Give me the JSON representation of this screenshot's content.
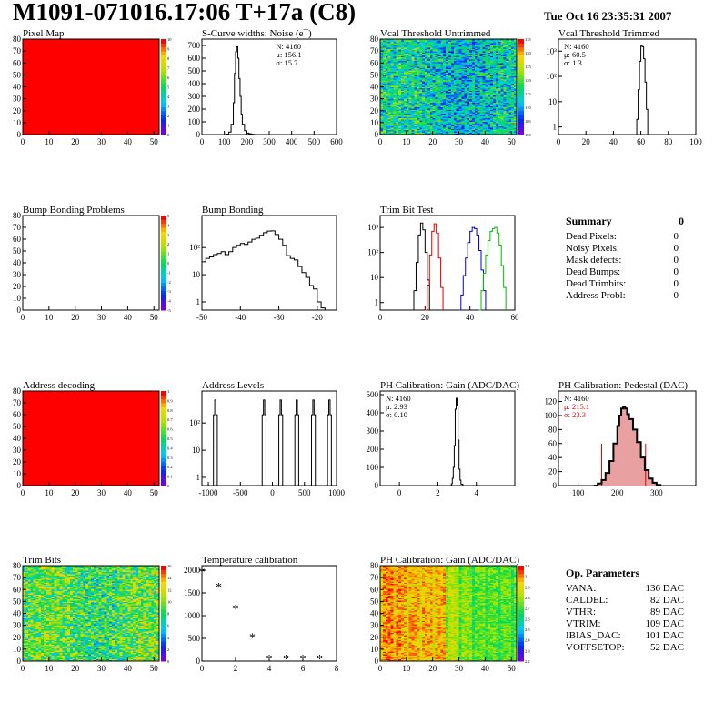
{
  "header": {
    "title": "M1091-071016.17:06 T+17a (C8)",
    "date": "Tue Oct 16 23:35:31 2007"
  },
  "summary": {
    "title": "Summary",
    "total": "0",
    "rows": [
      {
        "label": "Dead Pixels:",
        "value": "0"
      },
      {
        "label": "Noisy Pixels:",
        "value": "0"
      },
      {
        "label": "Mask defects:",
        "value": "0"
      },
      {
        "label": "Dead Bumps:",
        "value": "0"
      },
      {
        "label": "Dead Trimbits:",
        "value": "0"
      },
      {
        "label": "Address Probl:",
        "value": "0"
      }
    ]
  },
  "op_params": {
    "title": "Op. Parameters",
    "rows": [
      {
        "label": "VANA:",
        "value": "136 DAC"
      },
      {
        "label": "CALDEL:",
        "value": "82 DAC"
      },
      {
        "label": "VTHR:",
        "value": "89 DAC"
      },
      {
        "label": "VTRIM:",
        "value": "109 DAC"
      },
      {
        "label": "IBIAS_DAC:",
        "value": "101 DAC"
      },
      {
        "label": "VOFFSETOP:",
        "value": "52 DAC"
      }
    ]
  },
  "colors": {
    "hist_black": "#000000",
    "trim_red": "#e00000",
    "trim_blue": "#0000cc",
    "trim_green": "#00bb00",
    "pedestal_fill": "#e8a0a0",
    "map_red": "#ff0000"
  },
  "chart_data": [
    {
      "type": "heatmap",
      "title": "Pixel Map",
      "xlim": [
        0,
        52
      ],
      "ylim": [
        0,
        80
      ],
      "xticks": [
        "0",
        "10",
        "20",
        "30",
        "40",
        "50"
      ],
      "yticks": [
        "0",
        "10",
        "20",
        "30",
        "40",
        "50",
        "60",
        "70",
        "80"
      ],
      "zticks": [
        "0",
        "1",
        "2",
        "3",
        "4",
        "5",
        "6",
        "7",
        "8",
        "9",
        "10"
      ],
      "pattern": "uniform",
      "uniform_value": 10
    },
    {
      "type": "line",
      "title": "S-Curve widths: Noise (e¯)",
      "xlim": [
        0,
        600
      ],
      "ylim": [
        0,
        750
      ],
      "xticks": [
        "0",
        "100",
        "200",
        "300",
        "400",
        "500",
        "600"
      ],
      "yticks": [
        "0",
        "100",
        "200",
        "300",
        "400",
        "500",
        "600",
        "700"
      ],
      "stats": [
        "N: 4160",
        "μ: 156.1",
        "σ: 15.7"
      ],
      "series": [
        {
          "x": [
            100,
            110,
            120,
            130,
            140,
            145,
            150,
            155,
            160,
            165,
            170,
            175,
            180,
            190,
            200,
            210,
            220,
            230,
            240
          ],
          "y": [
            0,
            4,
            20,
            80,
            250,
            480,
            650,
            690,
            600,
            440,
            300,
            160,
            80,
            30,
            12,
            6,
            3,
            1,
            0
          ]
        }
      ]
    },
    {
      "type": "heatmap",
      "title": "Vcal Threshold Untrimmed",
      "xlim": [
        0,
        52
      ],
      "ylim": [
        0,
        80
      ],
      "xticks": [
        "0",
        "10",
        "20",
        "30",
        "40",
        "50"
      ],
      "yticks": [
        "0",
        "10",
        "20",
        "30",
        "40",
        "50",
        "60",
        "70",
        "80"
      ],
      "zticks": [
        "100",
        "105",
        "110",
        "115",
        "120",
        "125",
        "130",
        "135"
      ],
      "pattern": "untrimmed"
    },
    {
      "type": "line",
      "title": "Vcal Threshold Trimmed",
      "log_y": true,
      "xlim": [
        0,
        100
      ],
      "ylim": [
        0.5,
        3000
      ],
      "xticks": [
        "0",
        "20",
        "40",
        "60",
        "80",
        "100"
      ],
      "yticks": [
        "1",
        "10",
        "10²",
        "10³"
      ],
      "stats": [
        "N: 4160",
        "μ: 60.5",
        "σ: 1.3"
      ],
      "series": [
        {
          "x": [
            56,
            57,
            58,
            59,
            60,
            61,
            62,
            63,
            64,
            65
          ],
          "y": [
            0.5,
            2,
            30,
            400,
            1600,
            1500,
            500,
            60,
            5,
            0.5
          ]
        }
      ]
    },
    {
      "type": "heatmap",
      "title": "Bump Bonding Problems",
      "xlim": [
        0,
        52
      ],
      "ylim": [
        0,
        80
      ],
      "xticks": [
        "0",
        "10",
        "20",
        "30",
        "40",
        "50"
      ],
      "yticks": [
        "0",
        "10",
        "20",
        "30",
        "40",
        "50",
        "60",
        "70",
        "80"
      ],
      "zticks": [
        "-5",
        "-4",
        "-3",
        "-2",
        "-1",
        "0",
        "1",
        "2",
        "3",
        "4",
        "5"
      ],
      "pattern": "empty"
    },
    {
      "type": "line",
      "title": "Bump Bonding",
      "log_y": true,
      "xlim": [
        -50,
        -15
      ],
      "ylim": [
        0.5,
        1500
      ],
      "xticks": [
        "-50",
        "-40",
        "-30",
        "-20"
      ],
      "yticks": [
        "1",
        "10",
        "10²"
      ],
      "series": [
        {
          "x": [
            -50,
            -49,
            -48,
            -47,
            -46,
            -45,
            -44,
            -43,
            -42,
            -41,
            -40,
            -39,
            -38,
            -37,
            -36,
            -35,
            -34,
            -33,
            -32,
            -31,
            -30,
            -29,
            -28,
            -27,
            -26,
            -25,
            -24,
            -23,
            -22,
            -21,
            -20,
            -19,
            -18
          ],
          "y": [
            30,
            40,
            45,
            55,
            60,
            70,
            55,
            70,
            100,
            120,
            140,
            130,
            160,
            200,
            220,
            280,
            350,
            400,
            410,
            300,
            200,
            120,
            50,
            40,
            35,
            20,
            12,
            8,
            4,
            3,
            1,
            0.6,
            0.5
          ]
        }
      ]
    },
    {
      "type": "line",
      "title": "Trim Bit Test",
      "log_y": true,
      "xlim": [
        0,
        60
      ],
      "ylim": [
        0.5,
        3000
      ],
      "xticks": [
        "0",
        "20",
        "40",
        "60"
      ],
      "yticks": [
        "1",
        "10",
        "10²",
        "10³"
      ],
      "series": [
        {
          "color": "#000000",
          "x": [
            14,
            15,
            16,
            17,
            18,
            19,
            20,
            21,
            22
          ],
          "y": [
            0.5,
            3,
            40,
            500,
            1500,
            800,
            100,
            8,
            0.5
          ]
        },
        {
          "color": "#e00000",
          "x": [
            20,
            21,
            22,
            23,
            24,
            25,
            26,
            27,
            28
          ],
          "y": [
            0.5,
            5,
            80,
            700,
            1400,
            600,
            60,
            4,
            0.5
          ]
        },
        {
          "color": "#0000cc",
          "x": [
            35,
            36,
            37,
            38,
            39,
            40,
            41,
            42,
            43,
            44,
            45,
            46,
            47
          ],
          "y": [
            0.5,
            2,
            12,
            60,
            250,
            700,
            1000,
            900,
            500,
            120,
            20,
            3,
            0.5
          ]
        },
        {
          "color": "#00bb00",
          "x": [
            44,
            45,
            46,
            47,
            48,
            49,
            50,
            51,
            52,
            53,
            54,
            55,
            56
          ],
          "y": [
            0.5,
            3,
            15,
            80,
            300,
            700,
            900,
            1000,
            600,
            200,
            30,
            4,
            0.5
          ]
        }
      ]
    },
    {
      "type": "heatmap",
      "title": "Address decoding",
      "xlim": [
        0,
        52
      ],
      "ylim": [
        0,
        80
      ],
      "xticks": [
        "0",
        "10",
        "20",
        "30",
        "40",
        "50"
      ],
      "yticks": [
        "0",
        "10",
        "20",
        "30",
        "40",
        "50",
        "60",
        "70",
        "80"
      ],
      "zticks": [
        "0",
        "0.1",
        "0.2",
        "0.3",
        "0.4",
        "0.5",
        "0.6",
        "0.7",
        "0.8",
        "0.9",
        "1"
      ],
      "pattern": "uniform",
      "uniform_value": 1
    },
    {
      "type": "line",
      "title": "Address Levels",
      "log_y": true,
      "xlim": [
        -1100,
        1000
      ],
      "ylim": [
        0.5,
        1500
      ],
      "xticks": [
        "-1000",
        "-500",
        "0",
        "500",
        "1000"
      ],
      "yticks": [
        "1",
        "10",
        "10²"
      ],
      "series": [
        {
          "x": [
            -940,
            -920,
            -900,
            -880,
            -860,
            -180,
            -160,
            -140,
            -120,
            -100,
            80,
            100,
            120,
            140,
            160,
            330,
            350,
            370,
            390,
            410,
            590,
            610,
            630,
            650,
            670,
            840,
            860,
            880,
            900,
            920
          ],
          "y": [
            0.5,
            200,
            700,
            200,
            0.5,
            0.5,
            200,
            700,
            200,
            0.5,
            0.5,
            200,
            700,
            200,
            0.5,
            0.5,
            200,
            700,
            200,
            0.5,
            0.5,
            200,
            700,
            200,
            0.5,
            0.5,
            200,
            700,
            200,
            0.5
          ]
        }
      ]
    },
    {
      "type": "line",
      "title": "PH Calibration: Gain (ADC/DAC)",
      "xlim": [
        -1,
        6
      ],
      "ylim": [
        0,
        520
      ],
      "xticks": [
        "0",
        "2",
        "4"
      ],
      "yticks": [
        "0",
        "100",
        "200",
        "300",
        "400",
        "500"
      ],
      "stats": [
        "N: 4160",
        "μ: 2.93",
        "σ: 0.10"
      ],
      "series": [
        {
          "x": [
            2.6,
            2.7,
            2.75,
            2.8,
            2.85,
            2.9,
            2.95,
            3.0,
            3.05,
            3.1,
            3.15,
            3.2,
            3.3
          ],
          "y": [
            0,
            10,
            40,
            100,
            220,
            420,
            480,
            440,
            250,
            90,
            30,
            8,
            0
          ]
        }
      ]
    },
    {
      "type": "line",
      "title": "PH Calibration: Pedestal (DAC)",
      "xlim": [
        50,
        400
      ],
      "ylim": [
        0,
        135
      ],
      "xticks": [
        "100",
        "200",
        "300"
      ],
      "yticks": [
        "0",
        "20",
        "40",
        "60",
        "80",
        "100",
        "120"
      ],
      "stats": [
        "N: 4160",
        "μ: 215.1",
        "σ: 23.3"
      ],
      "stat_colors": [
        "#000000",
        "#e00000",
        "#e00000"
      ],
      "cut_lines": [
        160,
        272
      ],
      "series": [
        {
          "x": [
            140,
            150,
            160,
            170,
            180,
            190,
            200,
            205,
            210,
            215,
            220,
            225,
            230,
            240,
            250,
            260,
            270,
            280,
            290,
            300,
            310
          ],
          "y": [
            0,
            3,
            8,
            18,
            35,
            60,
            85,
            100,
            110,
            112,
            110,
            102,
            95,
            80,
            62,
            40,
            22,
            10,
            4,
            1,
            0
          ]
        }
      ]
    },
    {
      "type": "heatmap",
      "title": "Trim Bits",
      "xlim": [
        0,
        52
      ],
      "ylim": [
        0,
        80
      ],
      "xticks": [
        "0",
        "10",
        "20",
        "30",
        "40",
        "50"
      ],
      "yticks": [
        "0",
        "10",
        "20",
        "30",
        "40",
        "50",
        "60",
        "70",
        "80"
      ],
      "zticks": [
        "0",
        "2",
        "4",
        "6",
        "8",
        "10",
        "12",
        "14",
        "16"
      ],
      "pattern": "trimbits"
    },
    {
      "type": "scatter",
      "title": "Temperature calibration",
      "xlim": [
        0,
        8
      ],
      "ylim": [
        0,
        2100
      ],
      "xticks": [
        "0",
        "2",
        "4",
        "6",
        "8"
      ],
      "yticks": [
        "0",
        "500",
        "1000",
        "1500",
        "2000"
      ],
      "series": [
        {
          "x": [
            0,
            1,
            2,
            3,
            4,
            5,
            6,
            7
          ],
          "y": [
            1970,
            1640,
            1160,
            530,
            60,
            60,
            60,
            60
          ]
        }
      ]
    },
    {
      "type": "heatmap",
      "title": "PH Calibration: Gain (ADC/DAC)",
      "xlim": [
        0,
        52
      ],
      "ylim": [
        0,
        80
      ],
      "xticks": [
        "0",
        "10",
        "20",
        "30",
        "40",
        "50"
      ],
      "yticks": [
        "0",
        "10",
        "20",
        "30",
        "40",
        "50",
        "60",
        "70",
        "80"
      ],
      "zticks": [
        "2.2",
        "2.3",
        "2.4",
        "2.5",
        "2.6",
        "2.7",
        "2.8",
        "2.9",
        "3",
        "3.1"
      ],
      "pattern": "gain"
    }
  ]
}
